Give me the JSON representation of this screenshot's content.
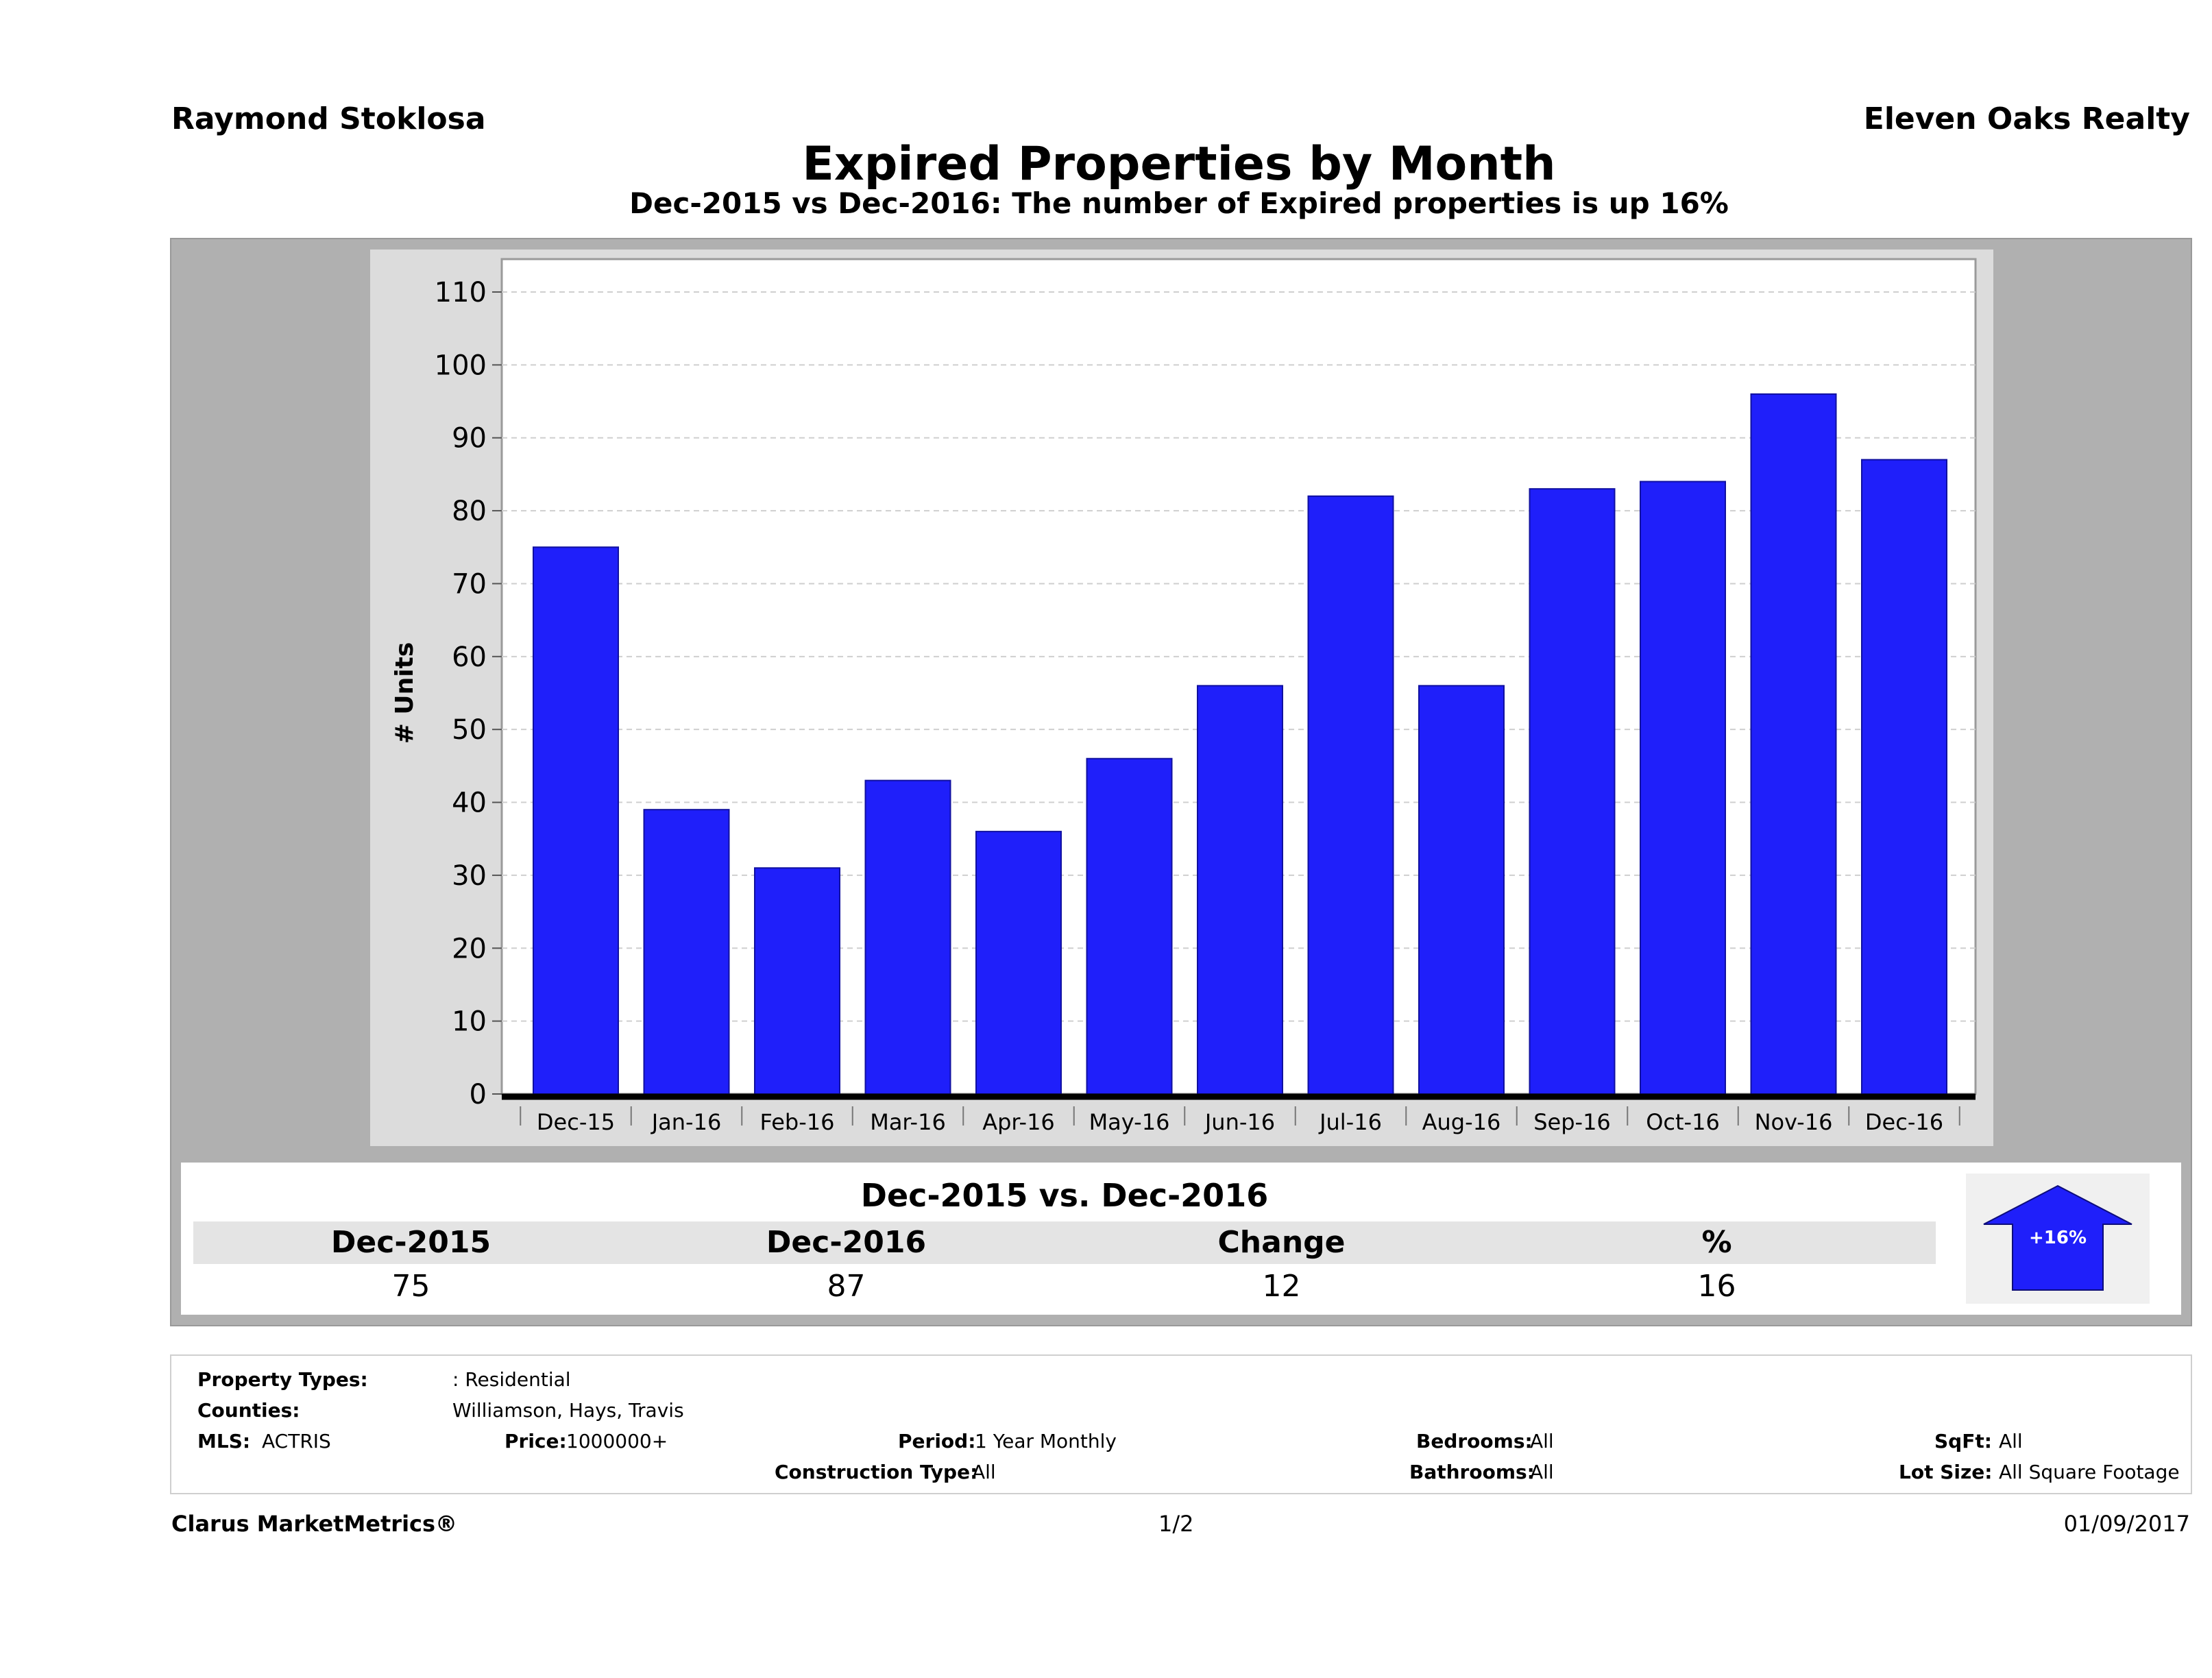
{
  "header": {
    "agent_name": "Raymond Stoklosa",
    "brokerage": "Eleven Oaks Realty",
    "title": "Expired Properties by Month",
    "subtitle": "Dec-2015 vs Dec-2016: The number of Expired  properties is up 16%"
  },
  "chart_data": {
    "type": "bar",
    "categories": [
      "Dec-15",
      "Jan-16",
      "Feb-16",
      "Mar-16",
      "Apr-16",
      "May-16",
      "Jun-16",
      "Jul-16",
      "Aug-16",
      "Sep-16",
      "Oct-16",
      "Nov-16",
      "Dec-16"
    ],
    "values": [
      75,
      39,
      31,
      43,
      36,
      46,
      56,
      82,
      56,
      83,
      84,
      96,
      87
    ],
    "ylabel": "# Units",
    "ylim": [
      0,
      110
    ],
    "yticks": [
      0,
      10,
      20,
      30,
      40,
      50,
      60,
      70,
      80,
      90,
      100,
      110
    ],
    "grid": true,
    "bar_color": "#1f1ffa"
  },
  "summary": {
    "title": "Dec-2015 vs. Dec-2016",
    "headers": [
      "Dec-2015",
      "Dec-2016",
      "Change",
      "%"
    ],
    "values": [
      "75",
      "87",
      "12",
      "16"
    ],
    "badge": "+16%",
    "badge_direction": "up",
    "badge_color": "#1f1ffa"
  },
  "parameters": {
    "property_types_label": "Property Types:",
    "property_types_value": ": Residential",
    "counties_label": "Counties:",
    "counties_value": "Williamson, Hays, Travis",
    "mls_label": "MLS:",
    "mls_value": "ACTRIS",
    "price_label": "Price:",
    "price_value": "1000000+",
    "period_label": "Period:",
    "period_value": "1 Year Monthly",
    "construction_label": "Construction Type:",
    "construction_value": "All",
    "bedrooms_label": "Bedrooms:",
    "bedrooms_value": "All",
    "bathrooms_label": "Bathrooms:",
    "bathrooms_value": "All",
    "sqft_label": "SqFt:",
    "sqft_value": "All",
    "lot_label": "Lot Size:",
    "lot_value": "All Square Footage"
  },
  "footer": {
    "product": "Clarus MarketMetrics®",
    "page": "1/2",
    "date": "01/09/2017"
  }
}
